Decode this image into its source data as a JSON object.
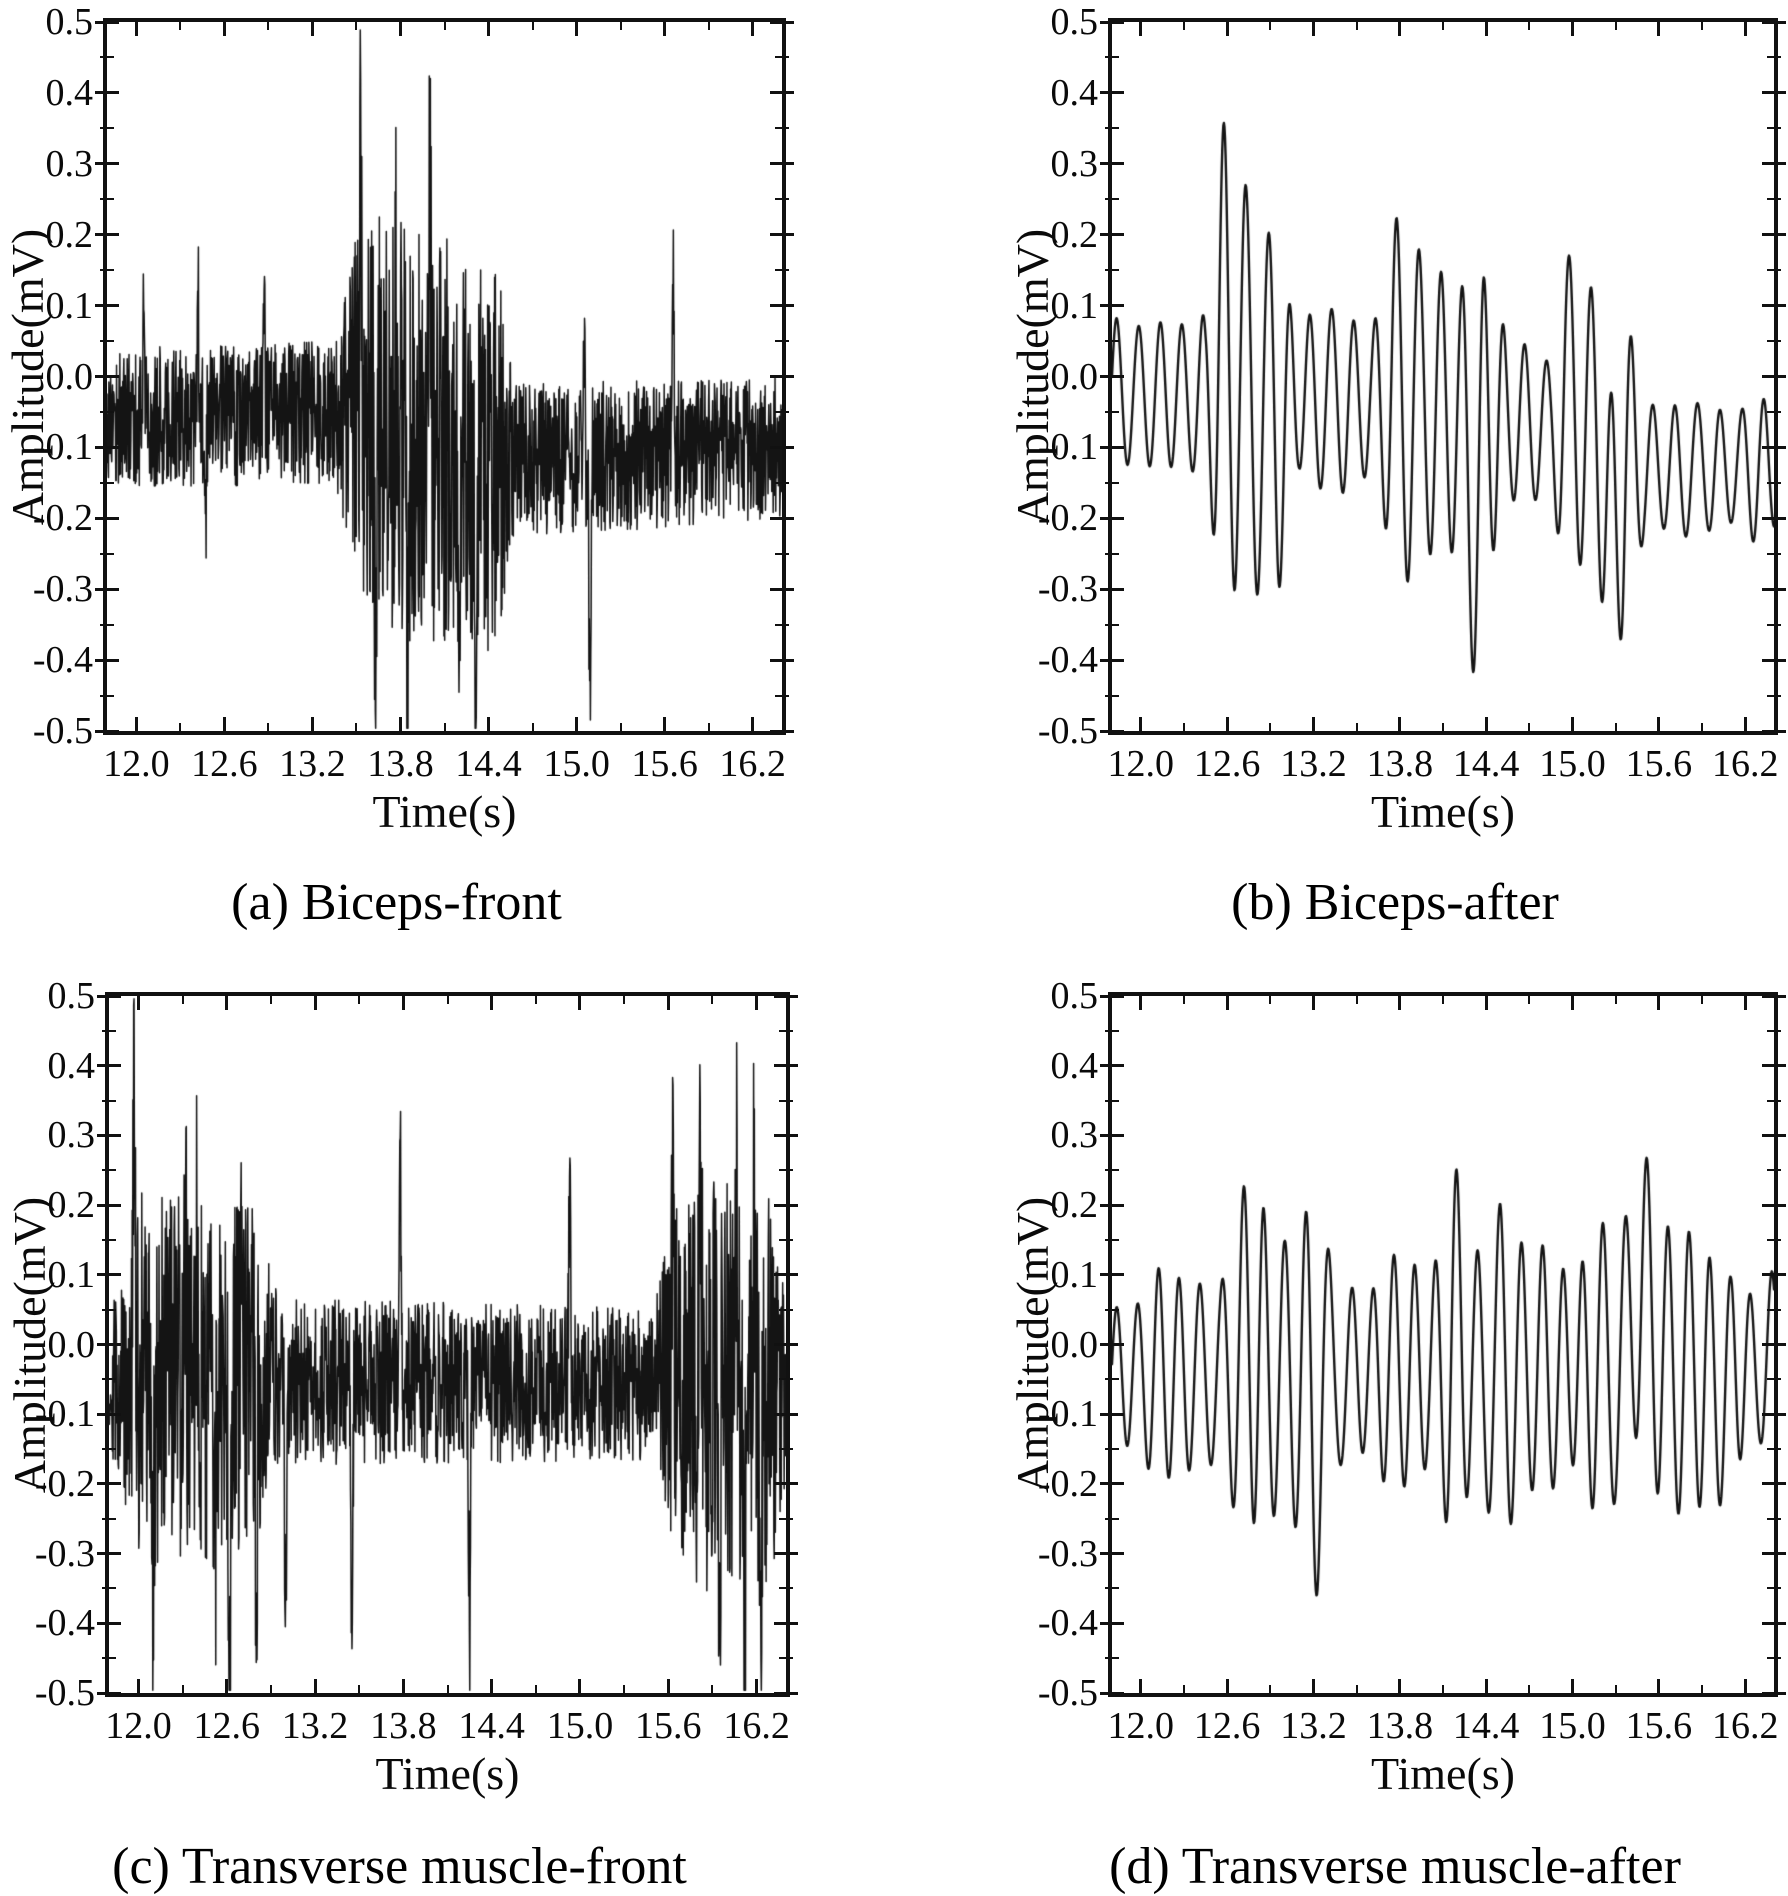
{
  "figure": {
    "background": "#ffffff",
    "line_color": "#141414",
    "axis_color": "#111111"
  },
  "chart_data": [
    {
      "id": "a",
      "type": "line",
      "caption": "(a) Biceps-front",
      "xlabel": "Time(s)",
      "ylabel": "Amplitude(mV)",
      "xlim": [
        11.8,
        16.4
      ],
      "ylim": [
        -0.5,
        0.5
      ],
      "xticks": [
        12.0,
        12.6,
        13.2,
        13.8,
        14.4,
        15.0,
        15.6,
        16.2
      ],
      "xticklabels": [
        "12.0",
        "12.6",
        "13.2",
        "13.8",
        "14.4",
        "15.0",
        "15.6",
        "16.2"
      ],
      "xminorticks": [
        12.3,
        12.9,
        13.5,
        14.1,
        14.7,
        15.3,
        15.9
      ],
      "yticks": [
        0.5,
        0.4,
        0.3,
        0.2,
        0.1,
        0.0,
        -0.1,
        -0.2,
        -0.3,
        -0.4,
        -0.5
      ],
      "yticklabels": [
        "0.5",
        "0.4",
        "0.3",
        "0.2",
        "0.1",
        "0.0",
        "-0.1",
        "-0.2",
        "-0.3",
        "-0.4",
        "-0.5"
      ],
      "yminorticks": [
        0.45,
        0.35,
        0.25,
        0.15,
        0.05,
        -0.05,
        -0.15,
        -0.25,
        -0.35,
        -0.45
      ],
      "grid": false,
      "legend": null,
      "signal": {
        "kind": "raw",
        "seed": 17,
        "sample_rate": 400,
        "baseline": [
          [
            11.8,
            -0.06
          ],
          [
            13.4,
            -0.05
          ],
          [
            14.55,
            -0.12
          ],
          [
            16.4,
            -0.1
          ]
        ],
        "envelope": [
          [
            11.8,
            0.1
          ],
          [
            13.35,
            0.1
          ],
          [
            13.5,
            0.26
          ],
          [
            13.6,
            0.3
          ],
          [
            14.45,
            0.28
          ],
          [
            14.6,
            0.11
          ],
          [
            16.4,
            0.1
          ]
        ],
        "spikes": [
          [
            12.05,
            0.18,
            0.012
          ],
          [
            12.42,
            0.2,
            0.012
          ],
          [
            12.47,
            -0.22,
            0.012
          ],
          [
            12.87,
            0.24,
            0.012
          ],
          [
            13.53,
            0.45,
            0.014
          ],
          [
            13.63,
            -0.38,
            0.014
          ],
          [
            13.77,
            0.22,
            0.012
          ],
          [
            13.85,
            -0.36,
            0.014
          ],
          [
            14.0,
            0.46,
            0.014
          ],
          [
            14.2,
            -0.36,
            0.014
          ],
          [
            14.31,
            -0.38,
            0.014
          ],
          [
            15.05,
            0.2,
            0.012
          ],
          [
            15.09,
            -0.4,
            0.014
          ],
          [
            15.66,
            0.28,
            0.012
          ]
        ]
      }
    },
    {
      "id": "b",
      "type": "line",
      "caption": "(b) Biceps-after",
      "xlabel": "Time(s)",
      "ylabel": "Amplitude(mV)",
      "xlim": [
        11.8,
        16.4
      ],
      "ylim": [
        -0.5,
        0.5
      ],
      "xticks": [
        12.0,
        12.6,
        13.2,
        13.8,
        14.4,
        15.0,
        15.6,
        16.2
      ],
      "xticklabels": [
        "12.0",
        "12.6",
        "13.2",
        "13.8",
        "14.4",
        "15.0",
        "15.6",
        "16.2"
      ],
      "xminorticks": [
        12.3,
        12.9,
        13.5,
        14.1,
        14.7,
        15.3,
        15.9
      ],
      "yticks": [
        0.5,
        0.4,
        0.3,
        0.2,
        0.1,
        0.0,
        -0.1,
        -0.2,
        -0.3,
        -0.4,
        -0.5
      ],
      "yticklabels": [
        "0.5",
        "0.4",
        "0.3",
        "0.2",
        "0.1",
        "0.0",
        "-0.1",
        "-0.2",
        "-0.3",
        "-0.4",
        "-0.5"
      ],
      "yminorticks": [
        0.45,
        0.35,
        0.25,
        0.15,
        0.05,
        -0.05,
        -0.15,
        -0.25,
        -0.35,
        -0.45
      ],
      "grid": false,
      "legend": null,
      "signal": {
        "kind": "oscillation",
        "seed": 41,
        "sample_rate": 260,
        "freq": 6.7,
        "mod_depth": 0.2,
        "phase_wobble": 0.7,
        "baseline": [
          [
            11.8,
            -0.025
          ],
          [
            13.2,
            -0.03
          ],
          [
            14.0,
            -0.05
          ],
          [
            15.2,
            -0.08
          ],
          [
            15.5,
            -0.13
          ],
          [
            16.4,
            -0.13
          ]
        ],
        "envelope": [
          [
            11.8,
            0.095
          ],
          [
            12.45,
            0.1
          ],
          [
            12.55,
            0.25
          ],
          [
            12.65,
            0.27
          ],
          [
            12.8,
            0.25
          ],
          [
            12.95,
            0.23
          ],
          [
            13.1,
            0.12
          ],
          [
            13.6,
            0.11
          ],
          [
            13.75,
            0.22
          ],
          [
            13.95,
            0.2
          ],
          [
            14.2,
            0.22
          ],
          [
            14.38,
            0.24
          ],
          [
            14.55,
            0.1
          ],
          [
            14.85,
            0.1
          ],
          [
            14.95,
            0.23
          ],
          [
            15.15,
            0.2
          ],
          [
            15.35,
            0.24
          ],
          [
            15.5,
            0.1
          ],
          [
            16.4,
            0.09
          ]
        ],
        "spikes": [
          [
            12.58,
            0.13,
            0.04
          ],
          [
            12.97,
            -0.06,
            0.05
          ],
          [
            13.78,
            0.05,
            0.04
          ],
          [
            14.31,
            -0.15,
            0.05
          ],
          [
            15.0,
            0.06,
            0.04
          ],
          [
            15.28,
            -0.14,
            0.06
          ]
        ]
      }
    },
    {
      "id": "c",
      "type": "line",
      "caption": "(c) Transverse muscle-front",
      "xlabel": "Time(s)",
      "ylabel": "Amplitude(mV)",
      "xlim": [
        11.8,
        16.4
      ],
      "ylim": [
        -0.5,
        0.5
      ],
      "xticks": [
        12.0,
        12.6,
        13.2,
        13.8,
        14.4,
        15.0,
        15.6,
        16.2
      ],
      "xticklabels": [
        "12.0",
        "12.6",
        "13.2",
        "13.8",
        "14.4",
        "15.0",
        "15.6",
        "16.2"
      ],
      "xminorticks": [
        12.3,
        12.9,
        13.5,
        14.1,
        14.7,
        15.3,
        15.9
      ],
      "yticks": [
        0.5,
        0.4,
        0.3,
        0.2,
        0.1,
        0.0,
        -0.1,
        -0.2,
        -0.3,
        -0.4,
        -0.5
      ],
      "yticklabels": [
        "0.5",
        "0.4",
        "0.3",
        "0.2",
        "0.1",
        "0.0",
        "-0.1",
        "-0.2",
        "-0.3",
        "-0.4",
        "-0.5"
      ],
      "yminorticks": [
        0.45,
        0.35,
        0.25,
        0.15,
        0.05,
        -0.05,
        -0.15,
        -0.25,
        -0.35,
        -0.45
      ],
      "grid": false,
      "legend": null,
      "signal": {
        "kind": "raw",
        "seed": 29,
        "sample_rate": 400,
        "baseline": [
          [
            11.8,
            -0.05
          ],
          [
            16.4,
            -0.06
          ]
        ],
        "envelope": [
          [
            11.8,
            0.09
          ],
          [
            11.92,
            0.2
          ],
          [
            12.0,
            0.27
          ],
          [
            12.8,
            0.25
          ],
          [
            12.95,
            0.12
          ],
          [
            15.5,
            0.11
          ],
          [
            15.65,
            0.26
          ],
          [
            15.85,
            0.3
          ],
          [
            16.3,
            0.28
          ],
          [
            16.4,
            0.14
          ]
        ],
        "spikes": [
          [
            11.97,
            0.48,
            0.014
          ],
          [
            12.1,
            -0.36,
            0.014
          ],
          [
            12.32,
            0.2,
            0.012
          ],
          [
            12.4,
            0.25,
            0.012
          ],
          [
            12.52,
            -0.3,
            0.014
          ],
          [
            12.62,
            -0.46,
            0.014
          ],
          [
            12.7,
            0.22,
            0.012
          ],
          [
            12.8,
            -0.38,
            0.014
          ],
          [
            13.0,
            -0.36,
            0.014
          ],
          [
            13.45,
            -0.37,
            0.014
          ],
          [
            13.78,
            0.36,
            0.014
          ],
          [
            14.25,
            -0.4,
            0.014
          ],
          [
            14.93,
            0.33,
            0.014
          ],
          [
            15.63,
            0.3,
            0.012
          ],
          [
            15.82,
            0.42,
            0.014
          ],
          [
            15.95,
            -0.3,
            0.012
          ],
          [
            16.06,
            0.4,
            0.014
          ],
          [
            16.12,
            -0.32,
            0.012
          ],
          [
            16.18,
            0.32,
            0.012
          ],
          [
            16.23,
            -0.4,
            0.014
          ]
        ]
      }
    },
    {
      "id": "d",
      "type": "line",
      "caption": "(d) Transverse muscle-after",
      "xlabel": "Time(s)",
      "ylabel": "Amplitude(mV)",
      "xlim": [
        11.8,
        16.4
      ],
      "ylim": [
        -0.5,
        0.5
      ],
      "xticks": [
        12.0,
        12.6,
        13.2,
        13.8,
        14.4,
        15.0,
        15.6,
        16.2
      ],
      "xticklabels": [
        "12.0",
        "12.6",
        "13.2",
        "13.8",
        "14.4",
        "15.0",
        "15.6",
        "16.2"
      ],
      "xminorticks": [
        12.3,
        12.9,
        13.5,
        14.1,
        14.7,
        15.3,
        15.9
      ],
      "yticks": [
        0.5,
        0.4,
        0.3,
        0.2,
        0.1,
        0.0,
        -0.1,
        -0.2,
        -0.3,
        -0.4,
        -0.5
      ],
      "yticklabels": [
        "0.5",
        "0.4",
        "0.3",
        "0.2",
        "0.1",
        "0.0",
        "-0.1",
        "-0.2",
        "-0.3",
        "-0.4",
        "-0.5"
      ],
      "yminorticks": [
        0.45,
        0.35,
        0.25,
        0.15,
        0.05,
        -0.05,
        -0.15,
        -0.25,
        -0.35,
        -0.45
      ],
      "grid": false,
      "legend": null,
      "signal": {
        "kind": "oscillation",
        "seed": 7,
        "sample_rate": 260,
        "freq": 6.8,
        "mod_depth": 0.22,
        "phase_wobble": 0.7,
        "baseline": [
          [
            11.8,
            -0.045
          ],
          [
            16.4,
            -0.035
          ]
        ],
        "envelope": [
          [
            11.8,
            0.125
          ],
          [
            12.55,
            0.13
          ],
          [
            12.7,
            0.24
          ],
          [
            12.85,
            0.26
          ],
          [
            13.0,
            0.2
          ],
          [
            13.2,
            0.24
          ],
          [
            13.35,
            0.15
          ],
          [
            13.6,
            0.13
          ],
          [
            13.8,
            0.16
          ],
          [
            14.0,
            0.15
          ],
          [
            14.15,
            0.26
          ],
          [
            14.3,
            0.18
          ],
          [
            14.5,
            0.24
          ],
          [
            14.65,
            0.2
          ],
          [
            14.85,
            0.14
          ],
          [
            15.1,
            0.16
          ],
          [
            15.3,
            0.22
          ],
          [
            15.5,
            0.24
          ],
          [
            15.7,
            0.24
          ],
          [
            15.9,
            0.2
          ],
          [
            16.1,
            0.12
          ],
          [
            16.4,
            0.13
          ]
        ],
        "spikes": [
          [
            12.75,
            0.07,
            0.04
          ],
          [
            13.22,
            -0.07,
            0.05
          ],
          [
            14.2,
            0.07,
            0.04
          ],
          [
            15.48,
            0.12,
            0.09
          ],
          [
            16.0,
            -0.05,
            0.05
          ]
        ]
      }
    }
  ]
}
